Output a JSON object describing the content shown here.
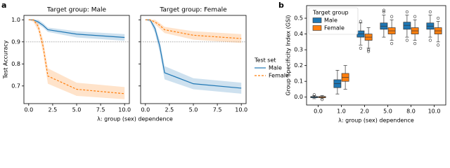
{
  "chart_data": [
    {
      "type": "line",
      "panel": "a",
      "title": "Target group: Male",
      "ylabel": "Test Accuracy",
      "xlabel": "λ: group (sex) dependence",
      "x": [
        0,
        0.5,
        1,
        1.5,
        2,
        5,
        10
      ],
      "series": [
        {
          "name": "Male",
          "color": "#1f77b4",
          "dash": false,
          "values": [
            1.0,
            1.0,
            0.99,
            0.975,
            0.955,
            0.935,
            0.92
          ],
          "lower": [
            1.0,
            0.995,
            0.98,
            0.965,
            0.945,
            0.92,
            0.905
          ],
          "upper": [
            1.0,
            1.0,
            1.0,
            0.985,
            0.965,
            0.948,
            0.935
          ]
        },
        {
          "name": "Female",
          "color": "#ff7f0e",
          "dash": true,
          "values": [
            1.0,
            1.0,
            0.97,
            0.88,
            0.745,
            0.685,
            0.665
          ],
          "lower": [
            1.0,
            0.99,
            0.95,
            0.85,
            0.71,
            0.655,
            0.64
          ],
          "upper": [
            1.0,
            1.0,
            0.985,
            0.91,
            0.78,
            0.715,
            0.695
          ]
        }
      ],
      "hline": 0.9,
      "xlim": [
        -0.5,
        10.5
      ],
      "ylim": [
        0.62,
        1.02
      ],
      "xticks": [
        {
          "value": 0,
          "label": "0.0"
        },
        2.5,
        {
          "value": 5,
          "label": "5.0"
        },
        7.5,
        {
          "value": 10,
          "label": "10.0"
        }
      ],
      "yticks": [
        0.7,
        0.8,
        0.9,
        {
          "value": 1,
          "label": "1.0"
        }
      ],
      "sharey": false
    },
    {
      "type": "line",
      "title": "Target group: Female",
      "legend_title": "Test set",
      "x": [
        0,
        0.5,
        1,
        1.5,
        2,
        5,
        10
      ],
      "series": [
        {
          "name": "Male",
          "color": "#1f77b4",
          "dash": false,
          "values": [
            1.0,
            1.0,
            0.96,
            0.88,
            0.76,
            0.71,
            0.69
          ],
          "lower": [
            1.0,
            0.99,
            0.94,
            0.85,
            0.73,
            0.685,
            0.665
          ],
          "upper": [
            1.0,
            1.0,
            0.975,
            0.905,
            0.79,
            0.735,
            0.715
          ]
        },
        {
          "name": "Female",
          "color": "#ff7f0e",
          "dash": true,
          "values": [
            1.0,
            1.0,
            0.99,
            0.975,
            0.955,
            0.93,
            0.915
          ],
          "lower": [
            1.0,
            0.995,
            0.98,
            0.96,
            0.94,
            0.91,
            0.895
          ],
          "upper": [
            1.0,
            1.0,
            1.0,
            0.985,
            0.968,
            0.948,
            0.935
          ]
        }
      ],
      "hline": 0.9,
      "xlim": [
        -0.5,
        10.5
      ],
      "ylim": [
        0.62,
        1.02
      ],
      "xticks": [
        {
          "value": 0,
          "label": "0.0"
        },
        2.5,
        {
          "value": 5,
          "label": "5.0"
        },
        7.5,
        {
          "value": 10,
          "label": "10.0"
        }
      ],
      "yticks": [
        0.7,
        0.8,
        0.9,
        {
          "value": 1,
          "label": "1.0"
        }
      ],
      "sharey": true
    },
    {
      "type": "box",
      "panel": "b",
      "ylabel": "Group Specificity Index (GSI)",
      "xlabel": "λ: group (sex) dependence",
      "legend_title": "Target group",
      "categories": [
        "0.0",
        "1.0",
        "2.0",
        "5.0",
        "8.0",
        "10.0"
      ],
      "series": [
        {
          "name": "Male",
          "color": "#1f77b4",
          "boxes": [
            [
              -0.01,
              -0.004,
              0,
              0.004,
              0.01
            ],
            [
              0.02,
              0.06,
              0.085,
              0.11,
              0.17
            ],
            [
              0.33,
              0.38,
              0.4,
              0.42,
              0.47
            ],
            [
              0.38,
              0.43,
              0.45,
              0.47,
              0.52
            ],
            [
              0.38,
              0.43,
              0.455,
              0.475,
              0.52
            ],
            [
              0.38,
              0.43,
              0.45,
              0.47,
              0.52
            ]
          ],
          "outliers": [
            [
              0.015
            ],
            [],
            [
              0.48,
              0.31
            ],
            [
              0.54,
              0.55
            ],
            [
              0.54,
              0.36
            ],
            [
              0.54,
              0.36
            ]
          ]
        },
        {
          "name": "Female",
          "color": "#ff7f0e",
          "boxes": [
            [
              -0.01,
              -0.004,
              0,
              0.004,
              0.01
            ],
            [
              0.05,
              0.1,
              0.125,
              0.15,
              0.2
            ],
            [
              0.31,
              0.36,
              0.38,
              0.4,
              0.44
            ],
            [
              0.36,
              0.4,
              0.42,
              0.44,
              0.49
            ],
            [
              0.36,
              0.4,
              0.42,
              0.44,
              0.49
            ],
            [
              0.35,
              0.4,
              0.42,
              0.44,
              0.48
            ]
          ],
          "outliers": [
            [
              -0.015
            ],
            [],
            [
              0.29,
              0.3
            ],
            [
              0.51,
              0.34
            ],
            [
              0.51,
              0.34
            ],
            [
              0.5,
              0.33
            ]
          ]
        }
      ],
      "ylim": [
        -0.05,
        0.58
      ],
      "yticks": [
        {
          "value": 0,
          "label": "0.0"
        },
        0.1,
        0.2,
        0.3,
        0.4,
        0.5
      ]
    }
  ]
}
